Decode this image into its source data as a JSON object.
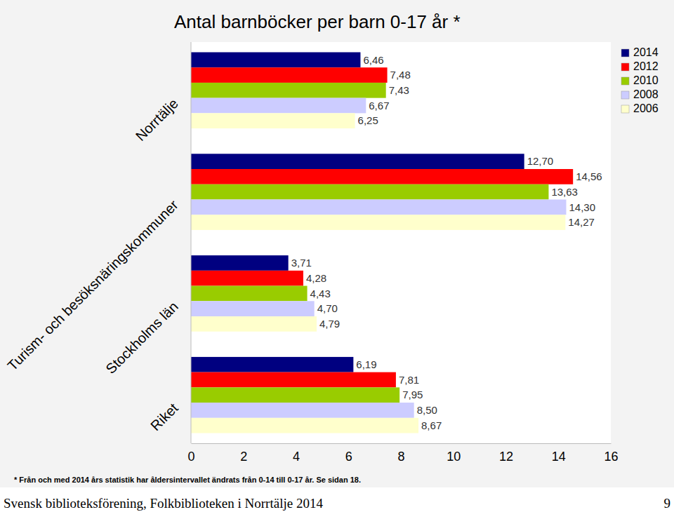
{
  "chart_data": {
    "type": "bar",
    "orientation": "horizontal",
    "title": "Antal barnböcker per barn 0-17 år *",
    "categories": [
      "Norrtälje",
      "Turism- och besöksnäringskommuner",
      "Stockholms län",
      "Riket"
    ],
    "series": [
      {
        "name": "2014",
        "color": "#000080",
        "values": [
          6.46,
          12.7,
          3.71,
          6.19
        ],
        "value_labels": [
          "6,46",
          "12,70",
          "3,71",
          "6,19"
        ]
      },
      {
        "name": "2012",
        "color": "#ff0000",
        "values": [
          7.48,
          14.56,
          4.28,
          7.81
        ],
        "value_labels": [
          "7,48",
          "14,56",
          "4,28",
          "7,81"
        ]
      },
      {
        "name": "2010",
        "color": "#99cc00",
        "values": [
          7.43,
          13.63,
          4.43,
          7.95
        ],
        "value_labels": [
          "7,43",
          "13,63",
          "4,43",
          "7,95"
        ]
      },
      {
        "name": "2008",
        "color": "#ccccff",
        "values": [
          6.67,
          14.3,
          4.7,
          8.5
        ],
        "value_labels": [
          "6,67",
          "14,30",
          "4,70",
          "8,50"
        ]
      },
      {
        "name": "2006",
        "color": "#ffffcc",
        "values": [
          6.25,
          14.27,
          4.79,
          8.67
        ],
        "value_labels": [
          "6,25",
          "14,27",
          "4,79",
          "8,67"
        ]
      }
    ],
    "xlim": [
      0,
      16
    ],
    "xticks": [
      0,
      2,
      4,
      6,
      8,
      10,
      12,
      14,
      16
    ],
    "grid": false,
    "legend": "top-right",
    "data_labels": true,
    "annotations": [
      "* Från och med 2014 års statistik har åldersintervallet ändrats från 0-14 till 0-17 år. Se sidan 18.",
      "Svensk biblioteksförening, Folkbiblioteken i Norrtälje 2014",
      "9"
    ]
  }
}
